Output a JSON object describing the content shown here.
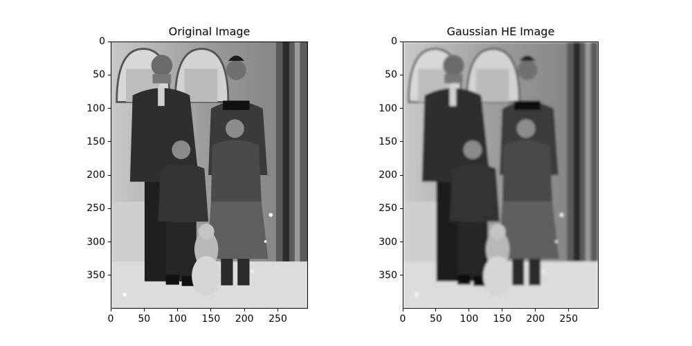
{
  "chart_data": [
    {
      "type": "image",
      "title": "Original Image",
      "filter": "none",
      "xlim": [
        0,
        295
      ],
      "ylim": [
        0,
        400
      ],
      "y_inverted": true,
      "x_ticks": [
        0,
        50,
        100,
        150,
        200,
        250
      ],
      "y_ticks": [
        0,
        50,
        100,
        150,
        200,
        250,
        300,
        350
      ]
    },
    {
      "type": "image",
      "title": "Gaussian HE Image",
      "filter": "blur",
      "xlim": [
        0,
        295
      ],
      "ylim": [
        0,
        400
      ],
      "y_inverted": true,
      "x_ticks": [
        0,
        50,
        100,
        150,
        200,
        250
      ],
      "y_ticks": [
        0,
        50,
        100,
        150,
        200,
        250,
        300,
        350
      ]
    }
  ]
}
